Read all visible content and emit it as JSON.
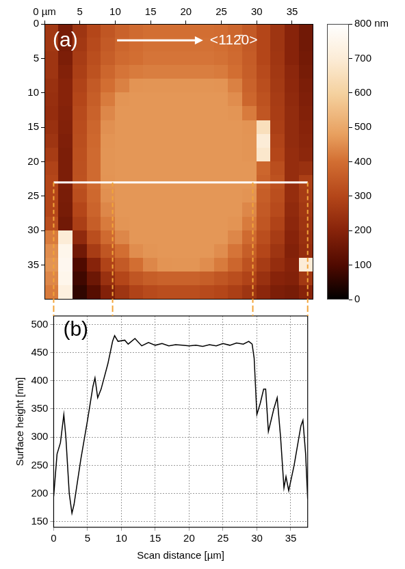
{
  "chart_data": [
    {
      "type": "heatmap",
      "panel": "(a)",
      "annotations": [
        "<112̄0>"
      ],
      "xlim": [
        0,
        38
      ],
      "ylim": [
        0,
        40
      ],
      "xticks": [
        {
          "value": 0,
          "label": "0 µm"
        },
        5,
        10,
        15,
        20,
        25,
        30,
        35
      ],
      "yticks": [
        0,
        5,
        10,
        15,
        20,
        25,
        30,
        35
      ],
      "x": [
        1,
        3,
        5,
        7,
        9,
        11,
        13,
        15,
        17,
        19,
        21,
        23,
        25,
        27,
        29,
        31,
        33,
        35,
        37
      ],
      "y": [
        1,
        3,
        5,
        7,
        9,
        11,
        13,
        15,
        17,
        19,
        21,
        23,
        25,
        27,
        29,
        31,
        33,
        35,
        37,
        39
      ],
      "z": [
        [
          260,
          170,
          250,
          300,
          340,
          370,
          390,
          400,
          400,
          400,
          400,
          400,
          395,
          380,
          350,
          300,
          250,
          200,
          160
        ],
        [
          260,
          170,
          260,
          310,
          350,
          380,
          395,
          405,
          405,
          405,
          405,
          405,
          400,
          385,
          350,
          300,
          250,
          200,
          160
        ],
        [
          250,
          180,
          270,
          320,
          360,
          390,
          400,
          410,
          410,
          410,
          410,
          410,
          405,
          390,
          355,
          300,
          255,
          200,
          165
        ],
        [
          250,
          190,
          280,
          330,
          380,
          410,
          420,
          425,
          425,
          425,
          425,
          425,
          420,
          400,
          360,
          310,
          260,
          210,
          170
        ],
        [
          240,
          200,
          290,
          350,
          400,
          430,
          460,
          462,
          462,
          462,
          462,
          462,
          460,
          430,
          370,
          320,
          265,
          215,
          180
        ],
        [
          235,
          200,
          300,
          360,
          420,
          462,
          465,
          465,
          465,
          465,
          465,
          465,
          465,
          450,
          380,
          330,
          270,
          220,
          185
        ],
        [
          230,
          195,
          310,
          370,
          440,
          465,
          465,
          465,
          465,
          465,
          465,
          465,
          465,
          462,
          420,
          340,
          275,
          225,
          190
        ],
        [
          240,
          190,
          315,
          380,
          455,
          465,
          465,
          465,
          465,
          465,
          465,
          465,
          465,
          465,
          460,
          650,
          280,
          225,
          200
        ],
        [
          250,
          185,
          320,
          385,
          460,
          465,
          465,
          465,
          465,
          465,
          465,
          465,
          465,
          465,
          462,
          700,
          290,
          225,
          205
        ],
        [
          270,
          180,
          325,
          390,
          462,
          465,
          465,
          465,
          465,
          465,
          465,
          465,
          465,
          465,
          462,
          680,
          300,
          230,
          210
        ],
        [
          290,
          180,
          328,
          390,
          462,
          465,
          465,
          465,
          465,
          465,
          465,
          465,
          465,
          465,
          465,
          380,
          320,
          230,
          240
        ],
        [
          300,
          180,
          330,
          390,
          460,
          465,
          465,
          465,
          465,
          465,
          465,
          465,
          465,
          465,
          465,
          370,
          330,
          230,
          280
        ],
        [
          300,
          175,
          320,
          385,
          455,
          465,
          465,
          465,
          465,
          465,
          465,
          465,
          465,
          465,
          460,
          360,
          320,
          230,
          270
        ],
        [
          300,
          170,
          300,
          375,
          440,
          465,
          465,
          465,
          465,
          465,
          465,
          465,
          465,
          465,
          440,
          350,
          310,
          220,
          260
        ],
        [
          320,
          160,
          280,
          360,
          420,
          462,
          465,
          465,
          465,
          465,
          465,
          465,
          465,
          460,
          420,
          340,
          290,
          210,
          250
        ],
        [
          420,
          700,
          220,
          320,
          390,
          440,
          465,
          465,
          465,
          465,
          465,
          465,
          465,
          440,
          390,
          320,
          270,
          200,
          240
        ],
        [
          450,
          750,
          160,
          270,
          340,
          400,
          450,
          462,
          465,
          465,
          465,
          465,
          450,
          410,
          360,
          300,
          250,
          190,
          230
        ],
        [
          460,
          760,
          100,
          200,
          290,
          350,
          400,
          440,
          460,
          462,
          462,
          450,
          420,
          380,
          330,
          270,
          230,
          200,
          700
        ],
        [
          440,
          750,
          80,
          150,
          240,
          300,
          340,
          360,
          370,
          370,
          370,
          360,
          340,
          320,
          290,
          240,
          200,
          190,
          260
        ],
        [
          420,
          720,
          60,
          110,
          190,
          250,
          290,
          310,
          320,
          320,
          320,
          310,
          300,
          280,
          250,
          210,
          180,
          170,
          200
        ]
      ],
      "colorbar": {
        "range": [
          0,
          800
        ],
        "ticks": [
          0,
          100,
          200,
          300,
          400,
          500,
          600,
          700,
          {
            "value": 800,
            "label": "800 nm"
          }
        ]
      },
      "scan_line": {
        "y": 23,
        "x": [
          1.3,
          37.2
        ]
      }
    },
    {
      "type": "line",
      "panel": "(b)",
      "xlabel": "Scan distance [µm]",
      "ylabel": "Surface height [nm]",
      "color": "#000000",
      "grid": true,
      "xlim": [
        0,
        37.5
      ],
      "ylim": [
        140,
        515
      ],
      "xticks": [
        0,
        5,
        10,
        15,
        20,
        25,
        30,
        35
      ],
      "yticks": [
        150,
        200,
        250,
        300,
        350,
        400,
        450,
        500
      ],
      "x": [
        0,
        0.5,
        1,
        1.5,
        1.8,
        2.3,
        2.7,
        3,
        4,
        5,
        5.8,
        6.1,
        6.5,
        7,
        8,
        8.7,
        9,
        9.5,
        10.5,
        11,
        12,
        13,
        14,
        15,
        16,
        17,
        18,
        19,
        20,
        21,
        22,
        23,
        24,
        25,
        26,
        27,
        28,
        28.8,
        29.3,
        29.6,
        30,
        30.5,
        31,
        31.3,
        31.7,
        32.5,
        33,
        33.5,
        34,
        34.3,
        34.7,
        35.5,
        36.5,
        36.8,
        37.2,
        37.5
      ],
      "values": [
        195,
        270,
        290,
        340,
        300,
        200,
        165,
        180,
        260,
        330,
        390,
        405,
        370,
        385,
        430,
        470,
        480,
        470,
        472,
        465,
        475,
        462,
        468,
        463,
        466,
        462,
        464,
        463,
        462,
        463,
        461,
        464,
        462,
        466,
        463,
        467,
        465,
        470,
        465,
        440,
        340,
        360,
        385,
        385,
        310,
        350,
        370,
        300,
        210,
        230,
        205,
        250,
        320,
        330,
        270,
        190
      ],
      "guides_x": [
        0,
        8.7,
        29.4,
        37.5
      ]
    }
  ]
}
